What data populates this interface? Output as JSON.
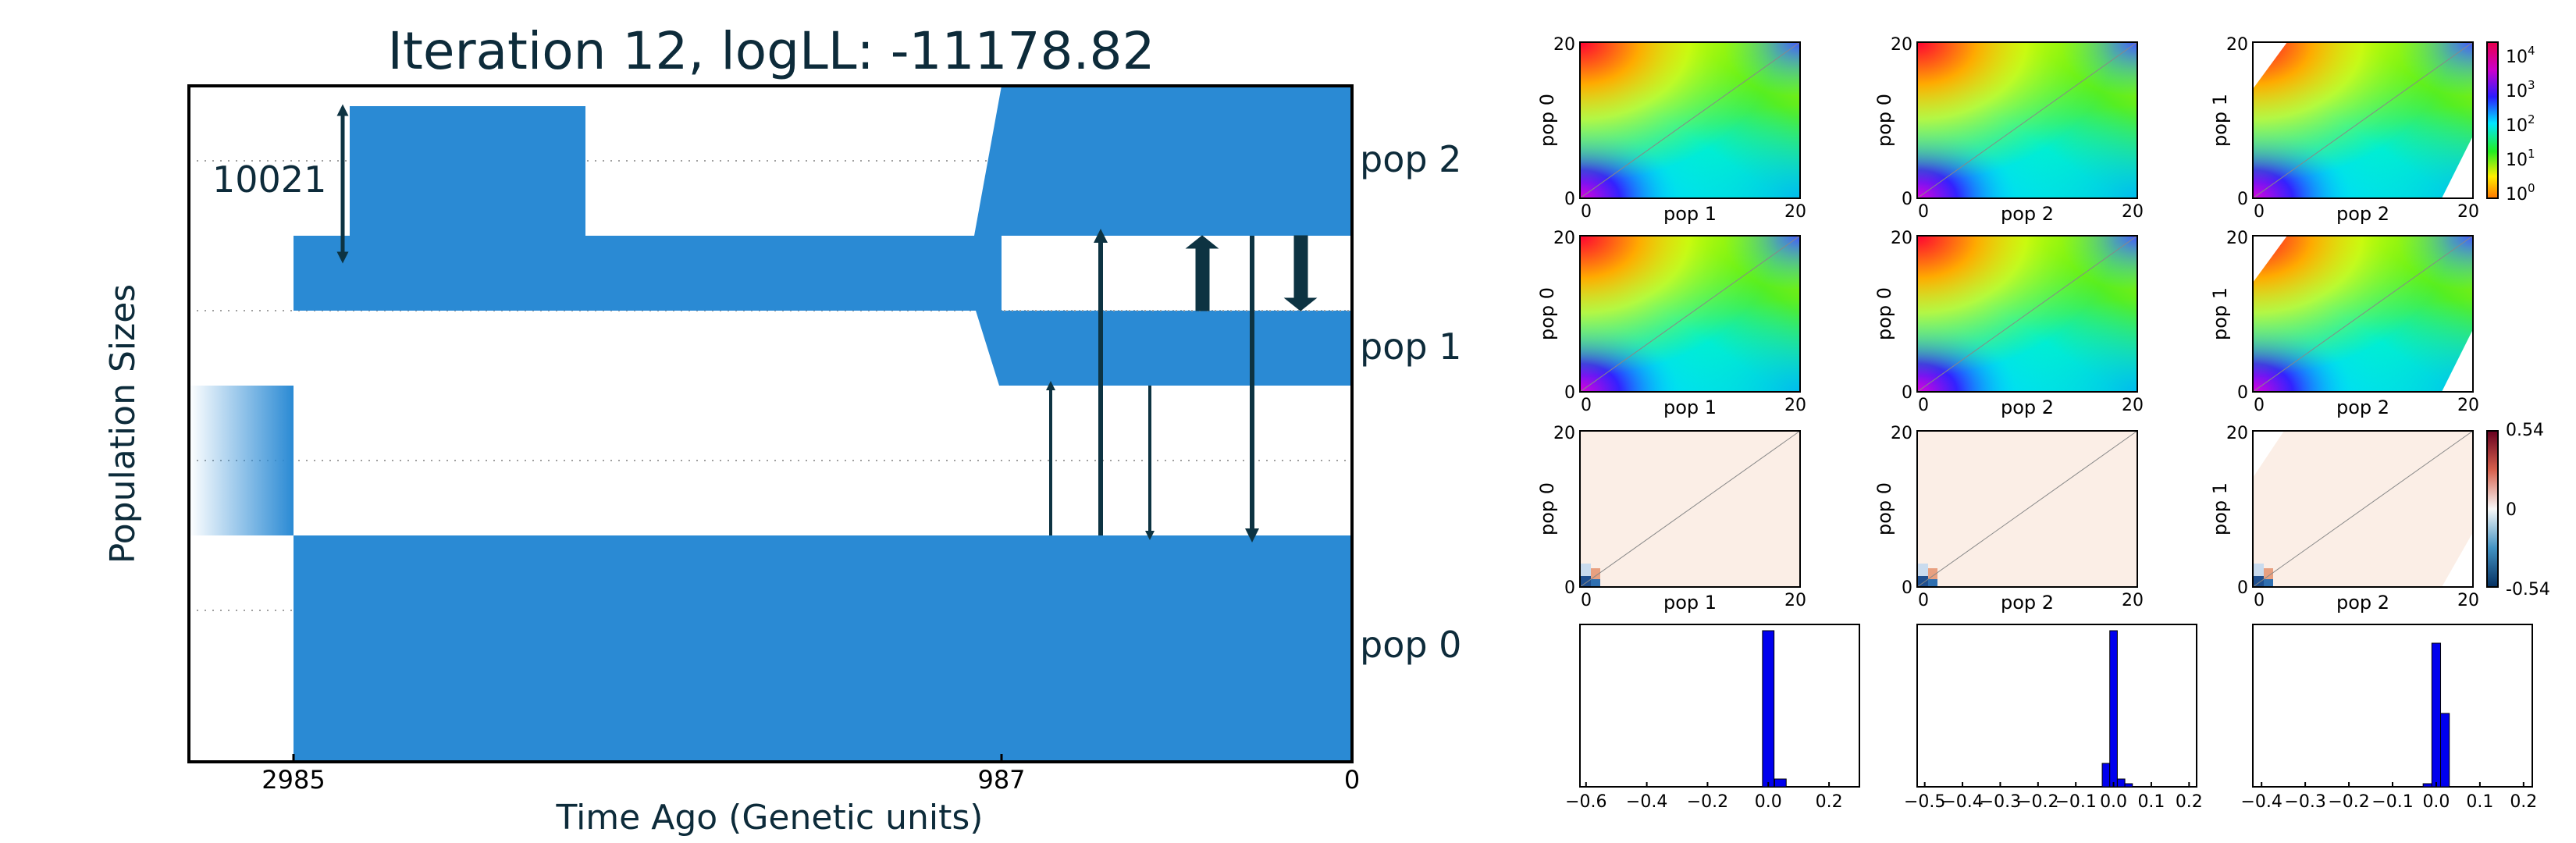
{
  "chart_data": [
    {
      "type": "demographic-model",
      "title": "Iteration 12, logLL:  -11178.82",
      "xlabel": "Time Ago (Genetic units)",
      "ylabel": "Population Sizes",
      "xticks": [
        "2985",
        "987",
        "0"
      ],
      "size_annotation": "10021",
      "populations": [
        {
          "name": "pop 0"
        },
        {
          "name": "pop 1"
        },
        {
          "name": "pop 2"
        }
      ],
      "color": "#2a8ad4",
      "arrow_color": "#0d3342"
    },
    {
      "type": "heatmap",
      "group": "observed SFS",
      "panels": [
        {
          "xlabel": "pop 1",
          "ylabel": "pop 0"
        },
        {
          "xlabel": "pop 2",
          "ylabel": "pop 0"
        },
        {
          "xlabel": "pop 2",
          "ylabel": "pop 1"
        }
      ],
      "xticks": [
        "0",
        "20"
      ],
      "yticks": [
        "0",
        "20"
      ],
      "colorbar": {
        "scale": "log",
        "ticks": [
          "10^4",
          "10^3",
          "10^2",
          "10^1",
          "10^0"
        ]
      }
    },
    {
      "type": "heatmap",
      "group": "model SFS",
      "panels": [
        {
          "xlabel": "pop 1",
          "ylabel": "pop 0"
        },
        {
          "xlabel": "pop 2",
          "ylabel": "pop 0"
        },
        {
          "xlabel": "pop 2",
          "ylabel": "pop 1"
        }
      ],
      "xticks": [
        "0",
        "20"
      ],
      "yticks": [
        "0",
        "20"
      ]
    },
    {
      "type": "heatmap",
      "group": "residuals",
      "panels": [
        {
          "xlabel": "pop 1",
          "ylabel": "pop 0"
        },
        {
          "xlabel": "pop 2",
          "ylabel": "pop 0"
        },
        {
          "xlabel": "pop 2",
          "ylabel": "pop 1"
        }
      ],
      "xticks": [
        "0",
        "20"
      ],
      "yticks": [
        "0",
        "20"
      ],
      "colorbar": {
        "range": [
          -0.54,
          0.54
        ],
        "ticks": [
          "0.54",
          "0",
          "-0.54"
        ]
      }
    },
    {
      "type": "bar",
      "group": "residual histograms",
      "panels": [
        {
          "xticks": [
            "−0.6",
            "−0.4",
            "−0.2",
            "0.0",
            "0.2"
          ],
          "xlim": [
            -0.62,
            0.3
          ],
          "bins": [
            {
              "x": 0.0,
              "h": 1.0
            },
            {
              "x": 0.04,
              "h": 0.05
            }
          ]
        },
        {
          "xticks": [
            "−0.5",
            "−0.4",
            "−0.3",
            "−0.2",
            "−0.1",
            "0.0",
            "0.1",
            "0.2"
          ],
          "xlim": [
            -0.52,
            0.22
          ],
          "bins": [
            {
              "x": -0.02,
              "h": 0.15
            },
            {
              "x": 0.0,
              "h": 1.0
            },
            {
              "x": 0.02,
              "h": 0.05
            },
            {
              "x": 0.04,
              "h": 0.02
            }
          ]
        },
        {
          "xticks": [
            "−0.4",
            "−0.3",
            "−0.2",
            "−0.1",
            "0.0",
            "0.1",
            "0.2"
          ],
          "xlim": [
            -0.42,
            0.22
          ],
          "bins": [
            {
              "x": -0.02,
              "h": 0.02
            },
            {
              "x": 0.0,
              "h": 0.92
            },
            {
              "x": 0.02,
              "h": 0.47
            }
          ]
        }
      ],
      "color": "#0000ee"
    }
  ]
}
